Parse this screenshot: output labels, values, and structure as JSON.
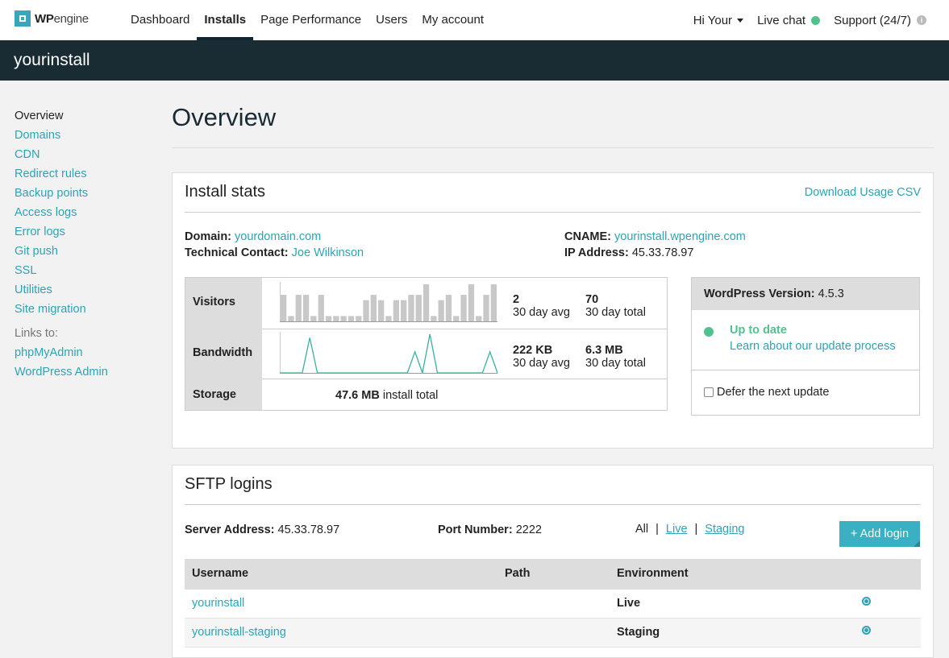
{
  "brand": {
    "name_bold": "WP",
    "name_light": "engine"
  },
  "nav": {
    "items": [
      "Dashboard",
      "Installs",
      "Page Performance",
      "Users",
      "My account"
    ],
    "greeting": "Hi Your",
    "live_chat": "Live chat",
    "support": "Support (24/7)"
  },
  "install_name": "yourinstall",
  "sidebar": {
    "items": [
      "Overview",
      "Domains",
      "CDN",
      "Redirect rules",
      "Backup points",
      "Access logs",
      "Error logs",
      "Git push",
      "SSL",
      "Utilities",
      "Site migration"
    ],
    "links_to_label": "Links to:",
    "links": [
      "phpMyAdmin",
      "WordPress Admin"
    ]
  },
  "page_title": "Overview",
  "install_stats": {
    "title": "Install stats",
    "download_csv": "Download Usage CSV",
    "domain_label": "Domain:",
    "domain_value": "yourdomain.com",
    "tech_contact_label": "Technical Contact:",
    "tech_contact_value": "Joe Wilkinson",
    "cname_label": "CNAME:",
    "cname_value": "yourinstall.wpengine.com",
    "ip_label": "IP Address:",
    "ip_value": "45.33.78.97",
    "visitors": {
      "label": "Visitors",
      "avg": "2",
      "avg_label": "30 day avg",
      "total": "70",
      "total_label": "30 day total",
      "bars": [
        5,
        1,
        5,
        5,
        1,
        5,
        1,
        1,
        1,
        1,
        1,
        4,
        5,
        4,
        1,
        4,
        4,
        5,
        5,
        7,
        1,
        4,
        5,
        1,
        5,
        7,
        1,
        5,
        7
      ]
    },
    "bandwidth": {
      "label": "Bandwidth",
      "avg": "222 KB",
      "avg_label": "30 day avg",
      "total": "6.3 MB",
      "total_label": "30 day total",
      "spikes": [
        0,
        0,
        0,
        0,
        5,
        0,
        0,
        0,
        0,
        0,
        0,
        0,
        0,
        0,
        0,
        0,
        0,
        0,
        3,
        0,
        5.5,
        0,
        0,
        0,
        0,
        0,
        0,
        0,
        3,
        0
      ]
    },
    "storage": {
      "label": "Storage",
      "value": "47.6 MB",
      "suffix": "install total"
    }
  },
  "wordpress": {
    "version_label": "WordPress Version:",
    "version_value": "4.5.3",
    "status": "Up to date",
    "learn_link": "Learn about our update process",
    "defer_label": "Defer the next update"
  },
  "sftp": {
    "title": "SFTP logins",
    "server_label": "Server Address:",
    "server_value": "45.33.78.97",
    "port_label": "Port Number:",
    "port_value": "2222",
    "filters": [
      "All",
      "Live",
      "Staging"
    ],
    "add_login": "+ Add login",
    "columns": [
      "Username",
      "Path",
      "Environment"
    ],
    "rows": [
      {
        "username": "yourinstall",
        "path": "",
        "environment": "Live"
      },
      {
        "username": "yourinstall-staging",
        "path": "",
        "environment": "Staging"
      }
    ]
  },
  "colors": {
    "accent": "#2ea3b5",
    "dark_bar": "#192b33",
    "status_green": "#53c08f"
  }
}
